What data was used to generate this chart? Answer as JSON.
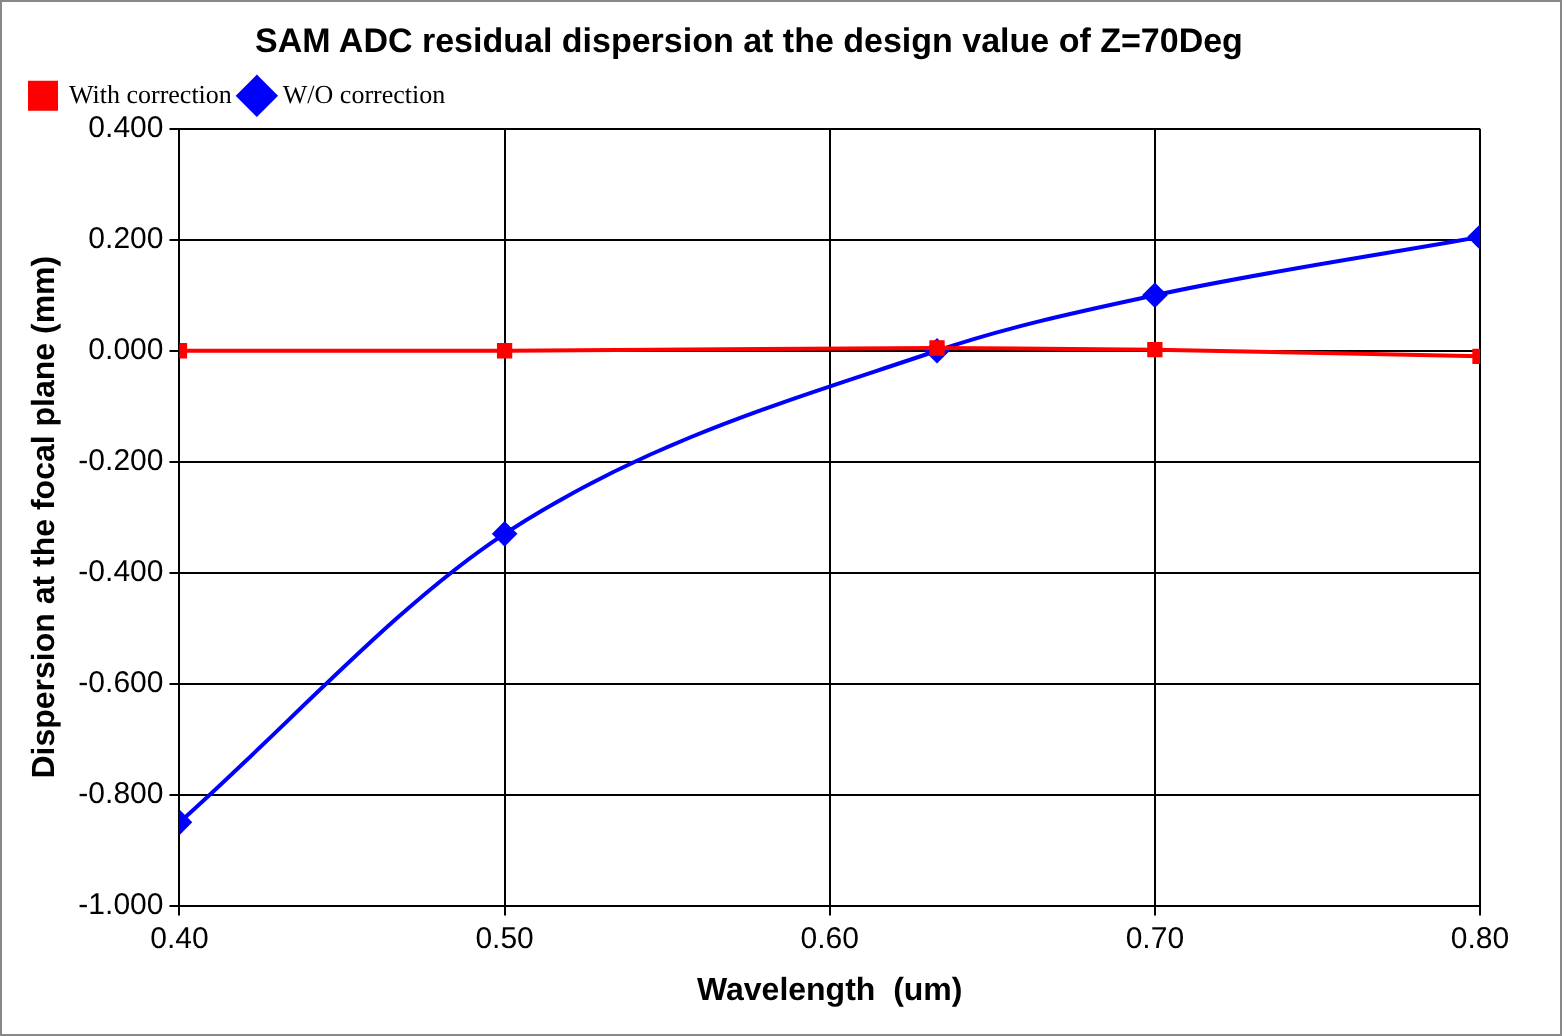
{
  "chart_data": {
    "type": "line",
    "title": "SAM ADC residual dispersion at the design value of Z=70Deg",
    "xlabel": "Wavelength  (um)",
    "ylabel": "Dispersion at the focal plane (mm)",
    "x": [
      0.4,
      0.5,
      0.633,
      0.7,
      0.8
    ],
    "series": [
      {
        "name": "W/O correction",
        "color": "#0000ff",
        "marker": "diamond",
        "values": [
          -0.85,
          -0.33,
          0.0,
          0.1,
          0.205
        ]
      },
      {
        "name": "With correction",
        "color": "#ff0000",
        "marker": "square",
        "values": [
          0.0,
          0.0,
          0.005,
          0.002,
          -0.01
        ]
      }
    ],
    "xlim": [
      0.4,
      0.8
    ],
    "xticks": [
      {
        "value": 0.4,
        "label": "0.40"
      },
      {
        "value": 0.5,
        "label": "0.50"
      },
      {
        "value": 0.6,
        "label": "0.60"
      },
      {
        "value": 0.7,
        "label": "0.70"
      },
      {
        "value": 0.8,
        "label": "0.80"
      }
    ],
    "ylim": [
      -1.0,
      0.4
    ],
    "yticks": [
      {
        "value": -1.0,
        "label": "-1.000"
      },
      {
        "value": -0.8,
        "label": "-0.800"
      },
      {
        "value": -0.6,
        "label": "-0.600"
      },
      {
        "value": -0.4,
        "label": "-0.400"
      },
      {
        "value": -0.2,
        "label": "-0.200"
      },
      {
        "value": 0,
        "label": "0.000"
      },
      {
        "value": 0.2,
        "label": "0.200"
      },
      {
        "value": 0.4,
        "label": "0.400"
      }
    ],
    "grid": true,
    "legend": "top left"
  }
}
